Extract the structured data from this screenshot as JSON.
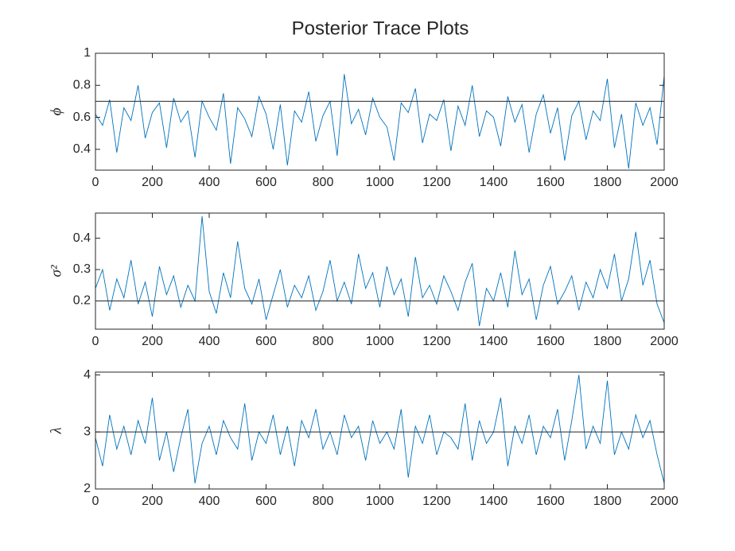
{
  "chart_data": [
    {
      "type": "line",
      "title": "Posterior Trace Plots",
      "ylabel": "ϕ",
      "color": "#0072bd",
      "hline": 0.7,
      "xlim": [
        0,
        2000
      ],
      "xticks": [
        0,
        200,
        400,
        600,
        800,
        1000,
        1200,
        1400,
        1600,
        1800,
        2000
      ],
      "ylim": [
        0.27,
        1
      ],
      "yticks": [
        0.4,
        0.6,
        0.8,
        1
      ],
      "x": [
        0,
        25,
        50,
        75,
        100,
        125,
        150,
        175,
        200,
        225,
        250,
        275,
        300,
        325,
        350,
        375,
        400,
        425,
        450,
        475,
        500,
        525,
        550,
        575,
        600,
        625,
        650,
        675,
        700,
        725,
        750,
        775,
        800,
        825,
        850,
        875,
        900,
        925,
        950,
        975,
        1000,
        1025,
        1050,
        1075,
        1100,
        1125,
        1150,
        1175,
        1200,
        1225,
        1250,
        1275,
        1300,
        1325,
        1350,
        1375,
        1400,
        1425,
        1450,
        1475,
        1500,
        1525,
        1550,
        1575,
        1600,
        1625,
        1650,
        1675,
        1700,
        1725,
        1750,
        1775,
        1800,
        1825,
        1850,
        1875,
        1900,
        1925,
        1950,
        1975,
        2000
      ],
      "values": [
        0.62,
        0.55,
        0.71,
        0.38,
        0.66,
        0.58,
        0.8,
        0.47,
        0.63,
        0.69,
        0.41,
        0.72,
        0.57,
        0.64,
        0.35,
        0.7,
        0.6,
        0.52,
        0.75,
        0.31,
        0.66,
        0.59,
        0.48,
        0.73,
        0.62,
        0.4,
        0.68,
        0.3,
        0.64,
        0.57,
        0.76,
        0.45,
        0.61,
        0.7,
        0.36,
        0.87,
        0.56,
        0.65,
        0.49,
        0.72,
        0.6,
        0.54,
        0.33,
        0.69,
        0.63,
        0.78,
        0.44,
        0.62,
        0.58,
        0.71,
        0.39,
        0.67,
        0.55,
        0.8,
        0.48,
        0.64,
        0.6,
        0.42,
        0.73,
        0.57,
        0.68,
        0.38,
        0.62,
        0.74,
        0.5,
        0.66,
        0.33,
        0.61,
        0.7,
        0.46,
        0.64,
        0.58,
        0.84,
        0.41,
        0.62,
        0.28,
        0.69,
        0.55,
        0.66,
        0.43,
        0.86
      ]
    },
    {
      "type": "line",
      "ylabel": "σ²",
      "color": "#0072bd",
      "hline": 0.2,
      "xlim": [
        0,
        2000
      ],
      "xticks": [
        0,
        200,
        400,
        600,
        800,
        1000,
        1200,
        1400,
        1600,
        1800,
        2000
      ],
      "ylim": [
        0.11,
        0.48
      ],
      "yticks": [
        0.2,
        0.3,
        0.4
      ],
      "x": [
        0,
        25,
        50,
        75,
        100,
        125,
        150,
        175,
        200,
        225,
        250,
        275,
        300,
        325,
        350,
        375,
        400,
        425,
        450,
        475,
        500,
        525,
        550,
        575,
        600,
        625,
        650,
        675,
        700,
        725,
        750,
        775,
        800,
        825,
        850,
        875,
        900,
        925,
        950,
        975,
        1000,
        1025,
        1050,
        1075,
        1100,
        1125,
        1150,
        1175,
        1200,
        1225,
        1250,
        1275,
        1300,
        1325,
        1350,
        1375,
        1400,
        1425,
        1450,
        1475,
        1500,
        1525,
        1550,
        1575,
        1600,
        1625,
        1650,
        1675,
        1700,
        1725,
        1750,
        1775,
        1800,
        1825,
        1850,
        1875,
        1900,
        1925,
        1950,
        1975,
        2000
      ],
      "values": [
        0.24,
        0.3,
        0.17,
        0.27,
        0.21,
        0.33,
        0.19,
        0.26,
        0.15,
        0.31,
        0.22,
        0.28,
        0.18,
        0.25,
        0.2,
        0.47,
        0.23,
        0.16,
        0.29,
        0.21,
        0.39,
        0.24,
        0.19,
        0.27,
        0.14,
        0.22,
        0.3,
        0.18,
        0.25,
        0.21,
        0.28,
        0.17,
        0.23,
        0.33,
        0.2,
        0.26,
        0.19,
        0.35,
        0.24,
        0.29,
        0.18,
        0.31,
        0.22,
        0.27,
        0.15,
        0.34,
        0.21,
        0.25,
        0.19,
        0.28,
        0.23,
        0.17,
        0.26,
        0.32,
        0.12,
        0.24,
        0.2,
        0.29,
        0.18,
        0.36,
        0.22,
        0.27,
        0.14,
        0.25,
        0.31,
        0.19,
        0.23,
        0.28,
        0.17,
        0.26,
        0.21,
        0.3,
        0.24,
        0.35,
        0.2,
        0.27,
        0.42,
        0.25,
        0.33,
        0.19,
        0.13
      ]
    },
    {
      "type": "line",
      "ylabel": "λ",
      "color": "#0072bd",
      "hline": 3,
      "xlim": [
        0,
        2000
      ],
      "xticks": [
        0,
        200,
        400,
        600,
        800,
        1000,
        1200,
        1400,
        1600,
        1800,
        2000
      ],
      "ylim": [
        2,
        4.05
      ],
      "yticks": [
        2,
        3,
        4
      ],
      "x": [
        0,
        25,
        50,
        75,
        100,
        125,
        150,
        175,
        200,
        225,
        250,
        275,
        300,
        325,
        350,
        375,
        400,
        425,
        450,
        475,
        500,
        525,
        550,
        575,
        600,
        625,
        650,
        675,
        700,
        725,
        750,
        775,
        800,
        825,
        850,
        875,
        900,
        925,
        950,
        975,
        1000,
        1025,
        1050,
        1075,
        1100,
        1125,
        1150,
        1175,
        1200,
        1225,
        1250,
        1275,
        1300,
        1325,
        1350,
        1375,
        1400,
        1425,
        1450,
        1475,
        1500,
        1525,
        1550,
        1575,
        1600,
        1625,
        1650,
        1675,
        1700,
        1725,
        1750,
        1775,
        1800,
        1825,
        1850,
        1875,
        1900,
        1925,
        1950,
        1975,
        2000
      ],
      "values": [
        2.9,
        2.4,
        3.3,
        2.7,
        3.1,
        2.6,
        3.2,
        2.8,
        3.6,
        2.5,
        3.0,
        2.3,
        2.9,
        3.4,
        2.1,
        2.8,
        3.1,
        2.6,
        3.2,
        2.9,
        2.7,
        3.5,
        2.5,
        3.0,
        2.8,
        3.3,
        2.6,
        3.1,
        2.4,
        3.2,
        2.9,
        3.4,
        2.7,
        3.0,
        2.6,
        3.3,
        2.9,
        3.1,
        2.5,
        3.2,
        2.8,
        3.0,
        2.7,
        3.4,
        2.2,
        3.1,
        2.8,
        3.3,
        2.6,
        3.0,
        2.9,
        2.7,
        3.5,
        2.5,
        3.2,
        2.8,
        3.0,
        3.6,
        2.4,
        3.1,
        2.8,
        3.3,
        2.6,
        3.1,
        2.9,
        3.4,
        2.5,
        3.2,
        4.0,
        2.7,
        3.1,
        2.8,
        3.9,
        2.6,
        3.0,
        2.7,
        3.3,
        2.9,
        3.2,
        2.6,
        2.1
      ]
    }
  ]
}
